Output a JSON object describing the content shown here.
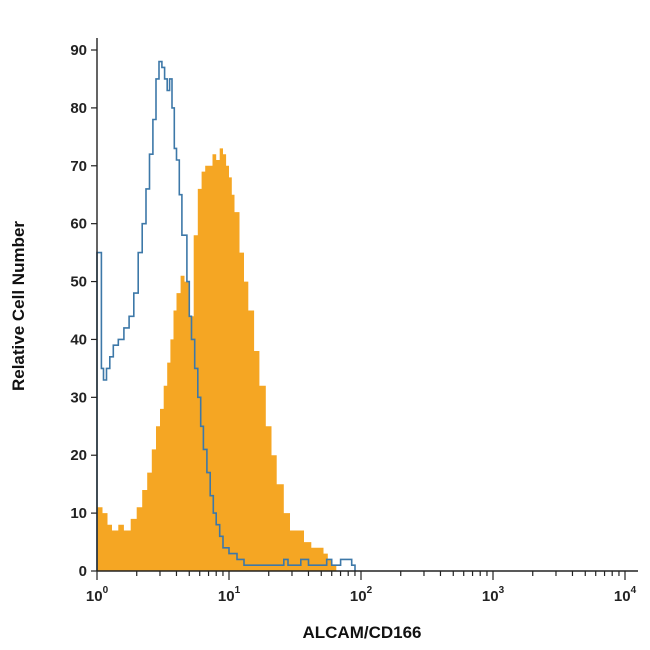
{
  "chart_data": {
    "type": "area",
    "title": "",
    "xlabel": "ALCAM/CD166",
    "ylabel": "Relative Cell Number",
    "xscale": "log",
    "xlim": [
      1,
      10000
    ],
    "ylim": [
      0,
      90
    ],
    "grid": false,
    "legend": "none",
    "x_ticks": [
      {
        "value": 1,
        "base": "10",
        "exp": "0"
      },
      {
        "value": 10,
        "base": "10",
        "exp": "1"
      },
      {
        "value": 100,
        "base": "10",
        "exp": "2"
      },
      {
        "value": 1000,
        "base": "10",
        "exp": "3"
      },
      {
        "value": 10000,
        "base": "10",
        "exp": "4"
      }
    ],
    "y_ticks": [
      {
        "value": 0,
        "label": "0"
      },
      {
        "value": 10,
        "label": "10"
      },
      {
        "value": 20,
        "label": "20"
      },
      {
        "value": 30,
        "label": "30"
      },
      {
        "value": 40,
        "label": "40"
      },
      {
        "value": 50,
        "label": "50"
      },
      {
        "value": 60,
        "label": "60"
      },
      {
        "value": 70,
        "label": "70"
      },
      {
        "value": 80,
        "label": "80"
      },
      {
        "value": 90,
        "label": "90"
      }
    ],
    "series": [
      {
        "style": "filled",
        "color": "#f5a623",
        "x": [
          1.0,
          1.1,
          1.2,
          1.3,
          1.45,
          1.6,
          1.8,
          2.0,
          2.2,
          2.4,
          2.6,
          2.8,
          3.0,
          3.2,
          3.4,
          3.6,
          3.8,
          4.0,
          4.3,
          4.6,
          5.0,
          5.4,
          5.8,
          6.2,
          6.6,
          7.0,
          7.5,
          8.0,
          8.5,
          9.0,
          9.5,
          10.0,
          10.5,
          11.0,
          12.0,
          13.0,
          14.0,
          15.5,
          17.0,
          19.0,
          21.0,
          23.0,
          26.0,
          29.0,
          33.0,
          37.0,
          42.0,
          47.0,
          52.0,
          56.0,
          60.0,
          65.0
        ],
        "values": [
          11,
          10,
          8,
          7,
          8,
          7,
          9,
          11,
          14,
          17,
          21,
          25,
          28,
          32,
          36,
          40,
          45,
          48,
          51,
          50,
          44,
          58,
          66,
          69,
          70,
          70,
          72,
          71,
          73,
          72,
          70,
          68,
          65,
          62,
          55,
          50,
          45,
          38,
          32,
          25,
          20,
          15,
          10,
          7,
          7,
          5,
          4,
          4,
          3,
          2,
          1,
          0
        ]
      },
      {
        "style": "outline",
        "color": "#3d78a8",
        "x": [
          1.0,
          1.08,
          1.12,
          1.18,
          1.25,
          1.33,
          1.45,
          1.6,
          1.75,
          1.9,
          2.05,
          2.2,
          2.35,
          2.5,
          2.65,
          2.8,
          2.95,
          3.1,
          3.25,
          3.4,
          3.55,
          3.7,
          3.85,
          4.0,
          4.2,
          4.4,
          4.6,
          4.8,
          5.0,
          5.2,
          5.5,
          5.8,
          6.1,
          6.4,
          6.8,
          7.2,
          7.6,
          8.0,
          8.5,
          9.0,
          10.0,
          11.5,
          13.0,
          15.0,
          18.0,
          21.0,
          24.0,
          26.0,
          28.0,
          31.0,
          35.0,
          40.0,
          45.0,
          50.0,
          55.0,
          60.0,
          65.0,
          70.0,
          78.0,
          85.0,
          90.0
        ],
        "values": [
          55,
          35,
          33,
          35,
          37,
          39,
          40,
          42,
          44,
          48,
          55,
          60,
          66,
          72,
          78,
          85,
          88,
          87,
          85,
          83,
          85,
          80,
          73,
          71,
          65,
          58,
          58,
          50,
          44,
          40,
          35,
          30,
          25,
          21,
          17,
          13,
          10,
          8,
          6,
          4,
          3,
          2,
          1,
          1,
          1,
          1,
          1,
          2,
          1,
          1,
          2,
          1,
          1,
          1,
          2,
          1,
          1,
          2,
          2,
          1,
          0
        ]
      }
    ]
  }
}
